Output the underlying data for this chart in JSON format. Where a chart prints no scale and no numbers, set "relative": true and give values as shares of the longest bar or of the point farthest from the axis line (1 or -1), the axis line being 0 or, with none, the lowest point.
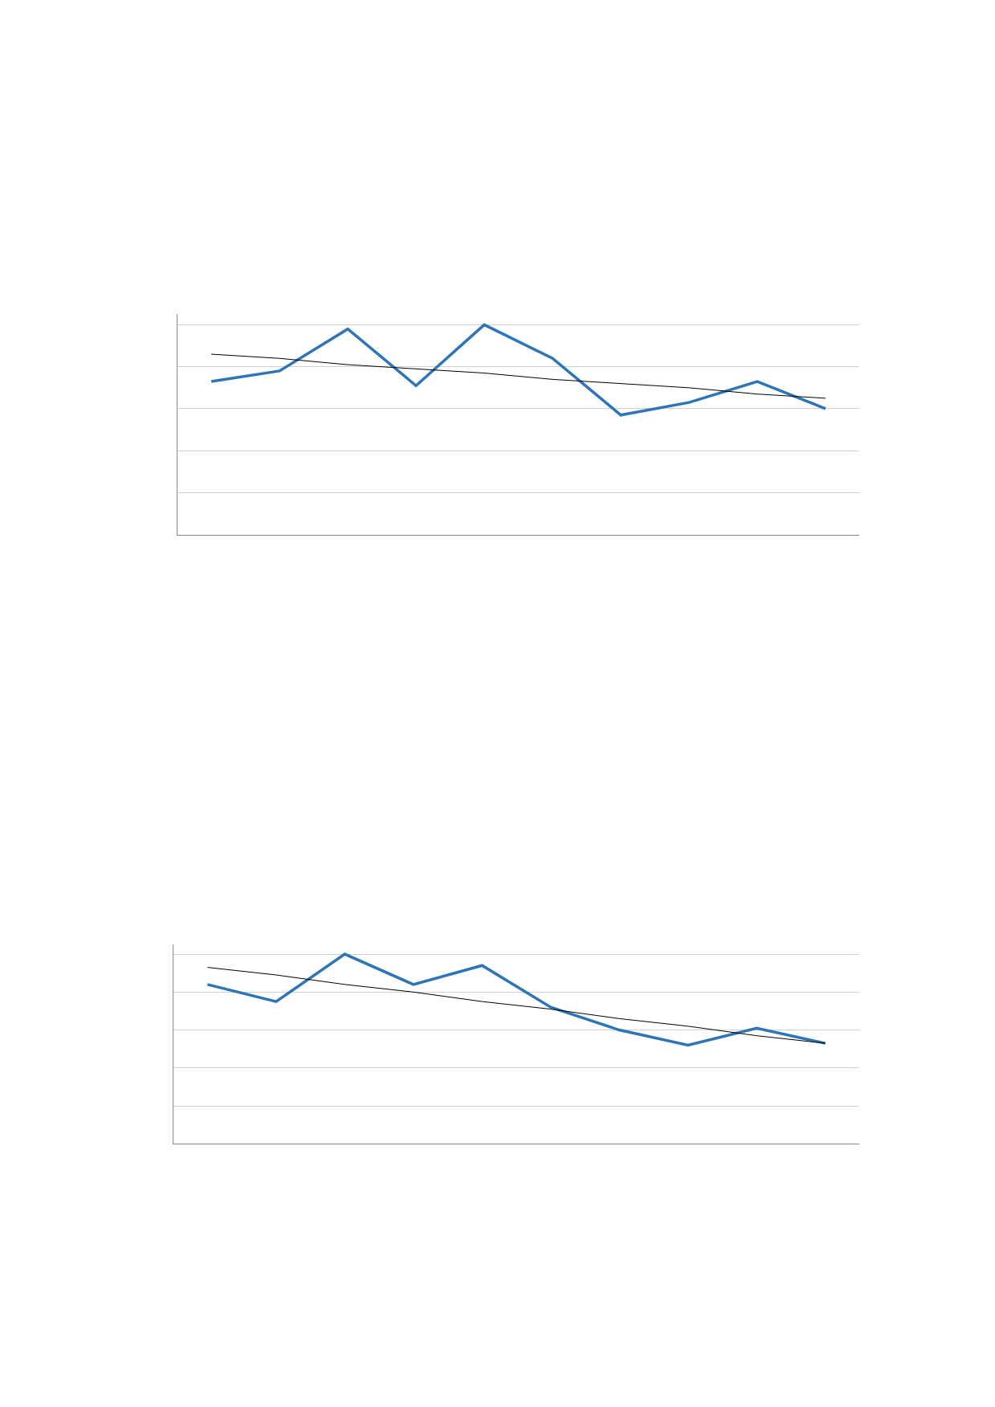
{
  "chart_data": [
    {
      "type": "line",
      "relative": true,
      "grid": "y",
      "marker": "none",
      "line_style": "solid",
      "categories": [
        null,
        null,
        null,
        null,
        null,
        null,
        null,
        null,
        null,
        null
      ],
      "series": [
        {
          "color": "#2e75b6",
          "values": [
            0.73,
            0.78,
            0.98,
            0.71,
            1,
            0.84,
            0.57,
            0.63,
            0.73,
            0.6
          ]
        },
        {
          "type": "line",
          "color": "#000000",
          "values": [
            0.86,
            0.84,
            0.81,
            0.79,
            0.77,
            0.74,
            0.72,
            0.7,
            0.67,
            0.65
          ]
        }
      ]
    },
    {
      "type": "line",
      "relative": true,
      "grid": "y",
      "marker": "none",
      "line_style": "solid",
      "categories": [
        null,
        null,
        null,
        null,
        null,
        null,
        null,
        null,
        null,
        null
      ],
      "series": [
        {
          "color": "#2e75b6",
          "values": [
            0.84,
            0.75,
            1,
            0.84,
            0.94,
            0.72,
            0.6,
            0.52,
            0.61,
            0.53
          ]
        },
        {
          "type": "line",
          "color": "#000000",
          "values": [
            0.93,
            0.89,
            0.84,
            0.8,
            0.75,
            0.71,
            0.66,
            0.62,
            0.57,
            0.53
          ]
        }
      ]
    }
  ]
}
